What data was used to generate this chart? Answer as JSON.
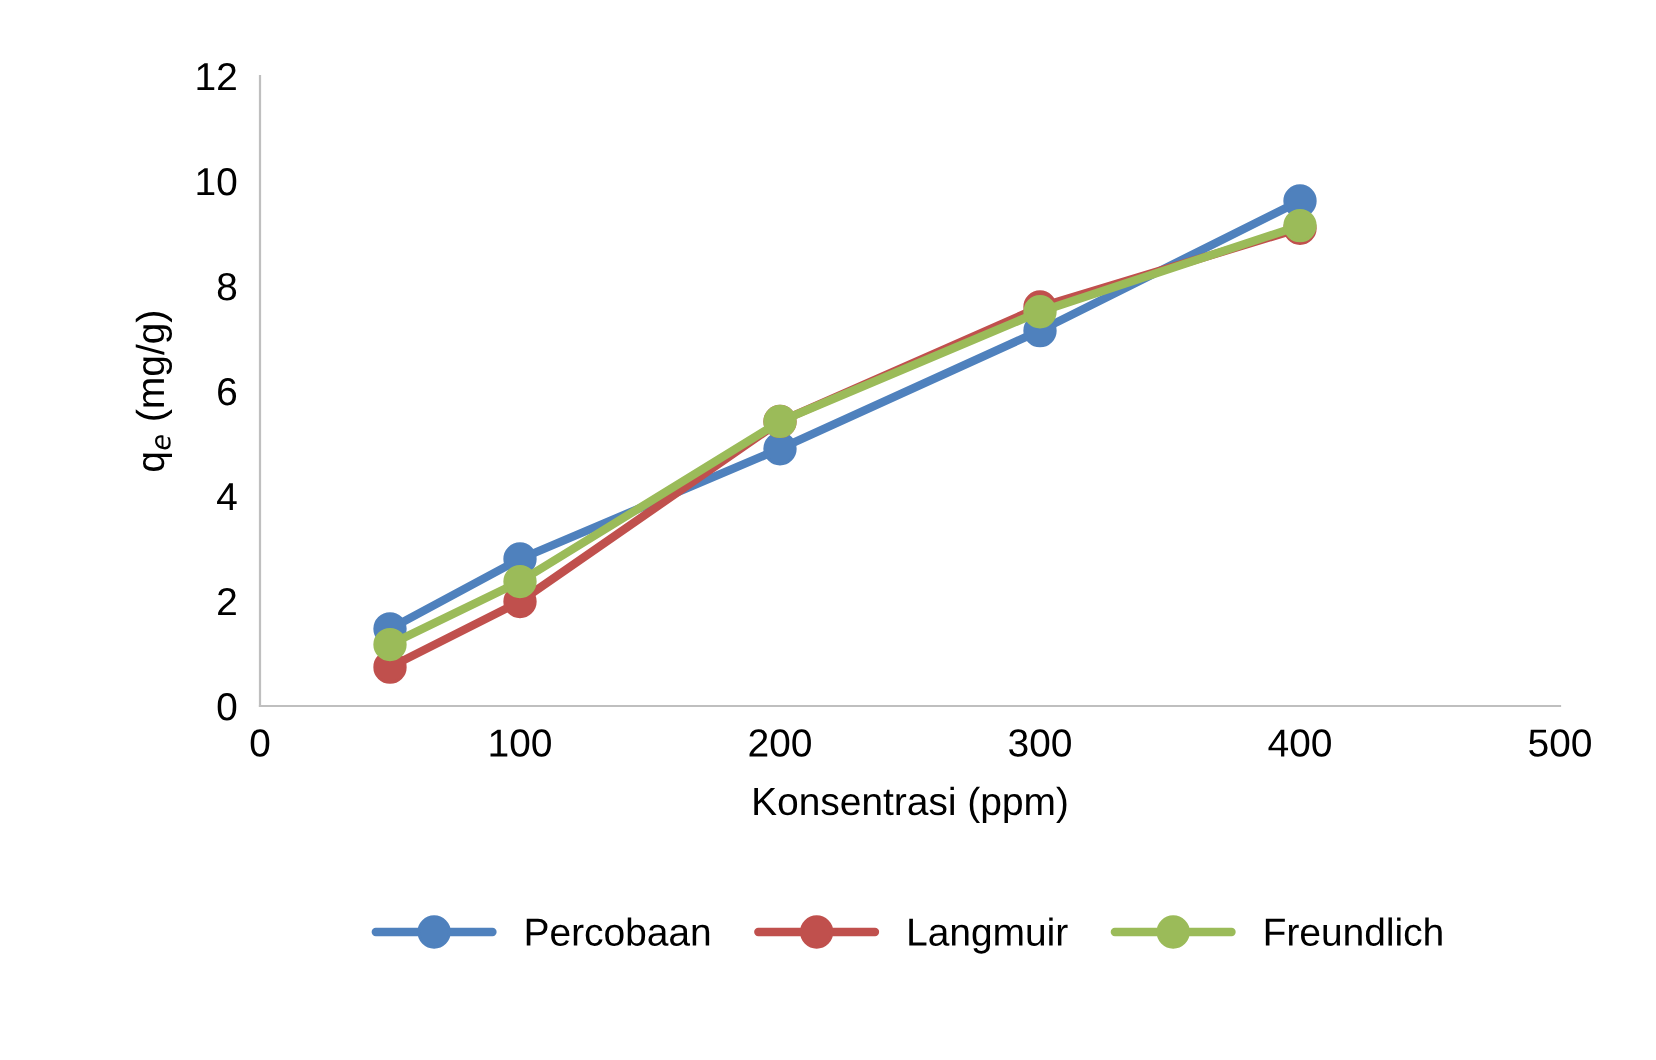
{
  "chart_data": {
    "type": "line",
    "xlabel": "Konsentrasi (ppm)",
    "ylabel": "q$_{e}$ (mg/g)",
    "x": [
      50,
      100,
      200,
      300,
      400
    ],
    "series": [
      {
        "name": "Percobaan",
        "color": "#4f81bd",
        "values": [
          1.47,
          2.8,
          4.9,
          7.15,
          9.62
        ]
      },
      {
        "name": "Langmuir",
        "color": "#c0504d",
        "values": [
          0.74,
          1.99,
          5.42,
          7.6,
          9.1
        ]
      },
      {
        "name": "Freundlich",
        "color": "#9bbb59",
        "values": [
          1.17,
          2.37,
          5.42,
          7.51,
          9.15
        ]
      }
    ],
    "xlim": [
      0,
      500
    ],
    "xticks": [
      0,
      100,
      200,
      300,
      400,
      500
    ],
    "ylim": [
      0,
      12
    ],
    "yticks": [
      0,
      2,
      4,
      6,
      8,
      10,
      12
    ],
    "marker": "circle",
    "line_style": "solid",
    "legend": "bottom",
    "grid": false
  }
}
